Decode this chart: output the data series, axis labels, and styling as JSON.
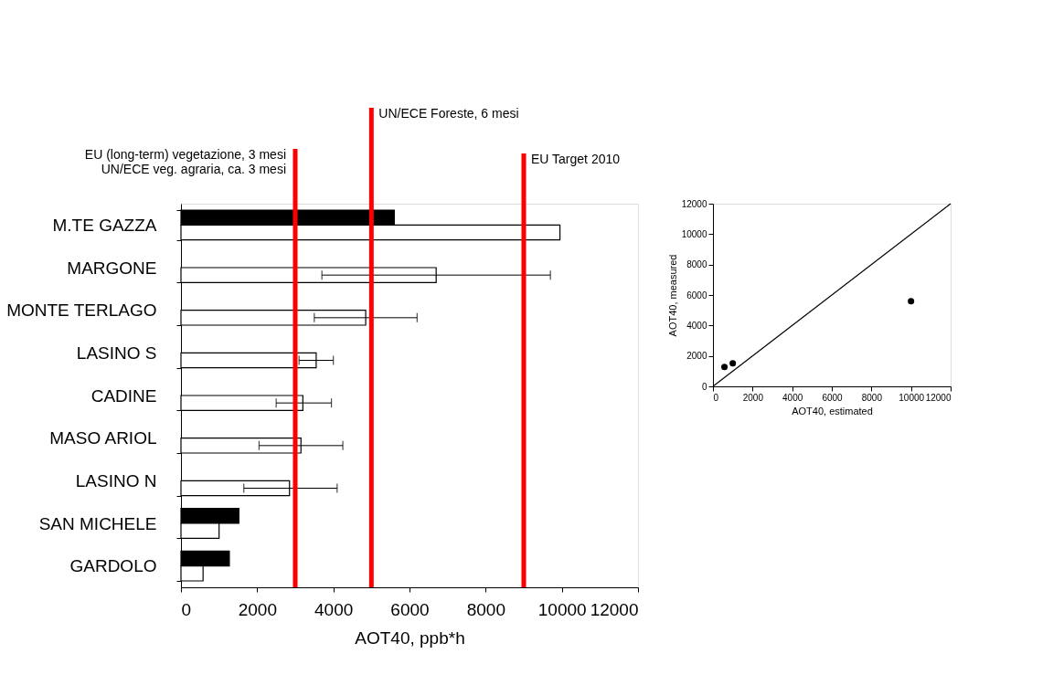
{
  "chart_data": [
    {
      "type": "bar",
      "orientation": "horizontal",
      "categories": [
        "M.TE GAZZA",
        "MARGONE",
        "MONTE TERLAGO",
        "LASINO S",
        "CADINE",
        "MASO ARIOL",
        "LASINO N",
        "SAN MICHELE",
        "GARDOLO"
      ],
      "series": [
        {
          "color": "#000000",
          "values": [
            5600,
            null,
            null,
            null,
            null,
            null,
            null,
            1520,
            1270
          ]
        },
        {
          "color": "#ffffff",
          "values": [
            9950,
            6700,
            4850,
            3550,
            3200,
            3150,
            2850,
            1000,
            580
          ],
          "errors": [
            null,
            [
              3700,
              9700
            ],
            [
              3500,
              6200
            ],
            [
              3100,
              4000
            ],
            [
              2500,
              3950
            ],
            [
              2050,
              4250
            ],
            [
              1650,
              4100
            ],
            null,
            null
          ]
        }
      ],
      "xlim": [
        0,
        12000
      ],
      "xticks": [
        0,
        2000,
        4000,
        6000,
        8000,
        10000,
        12000
      ],
      "xlabel": "AOT40, ppb*h",
      "ref_lines": [
        {
          "axis": "x",
          "value": 3000,
          "label": "EU (long-term) vegetazione, 3 mesi\nUN/ECE veg. agraria, ca. 3 mesi",
          "color": "#ff0000"
        },
        {
          "axis": "x",
          "value": 5000,
          "label": "UN/ECE Foreste, 6 mesi",
          "color": "#ff0000"
        },
        {
          "axis": "x",
          "value": 9000,
          "label": "EU Target 2010",
          "color": "#ff0000"
        }
      ],
      "grid": false,
      "legend": false
    },
    {
      "type": "scatter",
      "series": [
        {
          "type": "scatter",
          "color": "#000000",
          "marker": "circle",
          "x": [
            580,
            1000,
            10000
          ],
          "values": [
            1270,
            1520,
            5600
          ]
        },
        {
          "type": "line",
          "color": "#000000",
          "x": [
            0,
            12000
          ],
          "values": [
            0,
            12000
          ]
        }
      ],
      "xlim": [
        0,
        12000
      ],
      "xticks": [
        0,
        2000,
        4000,
        6000,
        8000,
        10000,
        12000
      ],
      "ylim": [
        0,
        12000
      ],
      "yticks": [
        0,
        2000,
        4000,
        6000,
        8000,
        10000,
        12000
      ],
      "xlabel": "AOT40, estimated",
      "ylabel": "AOT40, measured",
      "grid": false,
      "legend": false
    }
  ]
}
